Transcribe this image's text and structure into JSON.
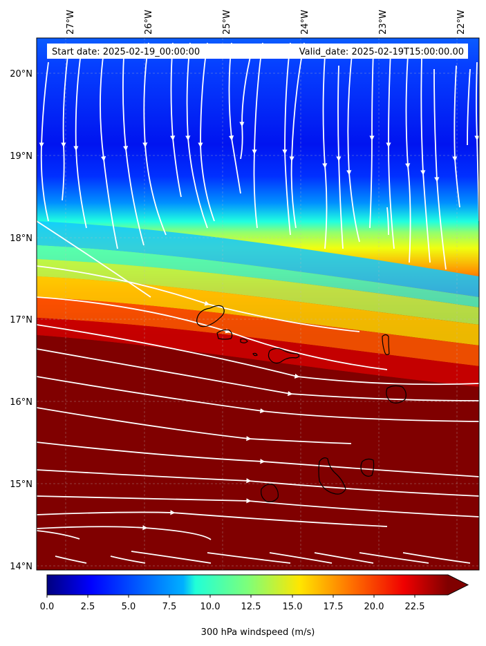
{
  "header": {
    "start_date": "Start date: 2025-02-19_00:00:00",
    "valid_date": "Valid_date: 2025-02-19T15:00:00.00"
  },
  "map": {
    "lon_range": [
      -27.5,
      -21.7
    ],
    "lat_range": [
      13.95,
      20.45
    ],
    "lon_ticks": [
      {
        "value": -27,
        "label": "27°W"
      },
      {
        "value": -26,
        "label": "26°W"
      },
      {
        "value": -25,
        "label": "25°W"
      },
      {
        "value": -24,
        "label": "24°W"
      },
      {
        "value": -23,
        "label": "23°W"
      },
      {
        "value": -22,
        "label": "22°W"
      }
    ],
    "lat_ticks": [
      {
        "value": 20,
        "label": "20°N"
      },
      {
        "value": 19,
        "label": "19°N"
      },
      {
        "value": 18,
        "label": "18°N"
      },
      {
        "value": 17,
        "label": "17°N"
      },
      {
        "value": 16,
        "label": "16°N"
      },
      {
        "value": 15,
        "label": "15°N"
      },
      {
        "value": 14,
        "label": "14°N"
      }
    ],
    "gridlines": true,
    "colormap": "jet",
    "streamline_color": "#ffffff",
    "coastline_color": "#000000"
  },
  "colorbar": {
    "label": "300 hPa windspeed (m/s)",
    "ticks": [
      "0.0",
      "2.5",
      "5.0",
      "7.5",
      "10.0",
      "12.5",
      "15.0",
      "17.5",
      "20.0",
      "22.5"
    ],
    "min": 0,
    "max": 24.5,
    "extend": "max"
  }
}
